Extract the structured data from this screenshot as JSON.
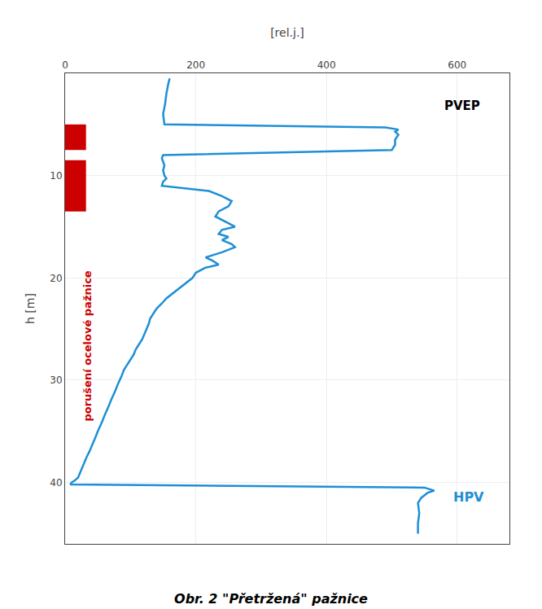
{
  "chart_data": {
    "type": "line",
    "title": "Obr. 2 \"Přetržená\" pažnice",
    "xlabel": "[rel.j.]",
    "ylabel": "h [m]",
    "xlim": [
      0,
      680
    ],
    "xticks": [
      0,
      200,
      400,
      600
    ],
    "ylim": [
      46,
      0
    ],
    "yticks": [
      10,
      20,
      30,
      40
    ],
    "grid": true,
    "color": "#1E8FD5",
    "x": [
      160,
      158,
      155,
      153,
      150,
      152,
      490,
      510,
      505,
      510,
      505,
      505,
      500,
      150,
      148,
      150,
      152,
      150,
      152,
      155,
      150,
      148,
      220,
      240,
      255,
      250,
      235,
      230,
      245,
      260,
      240,
      235,
      250,
      240,
      255,
      260,
      240,
      215,
      225,
      235,
      215,
      200,
      195,
      185,
      175,
      165,
      155,
      148,
      140,
      135,
      130,
      128,
      125,
      122,
      118,
      113,
      108,
      105,
      100,
      95,
      90,
      87,
      83,
      80,
      77,
      73,
      70,
      67,
      63,
      60,
      57,
      53,
      50,
      47,
      44,
      40,
      37,
      33,
      30,
      27,
      23,
      20,
      15,
      10,
      8,
      550,
      565,
      555,
      545,
      540,
      542,
      540,
      540
    ],
    "y": [
      0.5,
      1.0,
      2.0,
      3.0,
      4.0,
      5.0,
      5.3,
      5.5,
      5.7,
      6.0,
      6.5,
      7.0,
      7.5,
      8.0,
      8.3,
      8.6,
      9.0,
      9.5,
      10.0,
      10.3,
      10.6,
      11.0,
      11.5,
      12.0,
      12.5,
      13.0,
      13.5,
      14.0,
      14.5,
      15.0,
      15.3,
      15.7,
      16.0,
      16.3,
      16.7,
      17.0,
      17.5,
      18.0,
      18.3,
      18.7,
      19.0,
      19.5,
      20.0,
      20.5,
      21.0,
      21.5,
      22.0,
      22.5,
      23.0,
      23.5,
      24.0,
      24.5,
      25.0,
      25.5,
      26.0,
      26.5,
      27.0,
      27.5,
      28.0,
      28.5,
      29.0,
      29.5,
      30.0,
      30.5,
      31.0,
      31.5,
      32.0,
      32.5,
      33.0,
      33.5,
      34.0,
      34.5,
      35.0,
      35.5,
      36.0,
      36.5,
      37.0,
      37.5,
      38.0,
      38.5,
      39.0,
      39.5,
      39.8,
      40.0,
      40.2,
      40.5,
      40.8,
      41.0,
      41.5,
      42.0,
      43.0,
      44.0,
      45.0
    ],
    "annotations": [
      {
        "text": "PVEP",
        "color": "#000000"
      },
      {
        "text": "HPV",
        "color": "#1E8FD5"
      },
      {
        "text": "porušení ocelové pažnice",
        "color": "#CC0000"
      }
    ],
    "highlights": [
      {
        "x": [
          0,
          32
        ],
        "y": [
          5.0,
          7.5
        ],
        "color": "#CC0000"
      },
      {
        "x": [
          0,
          32
        ],
        "y": [
          8.5,
          13.5
        ],
        "color": "#CC0000"
      }
    ]
  }
}
